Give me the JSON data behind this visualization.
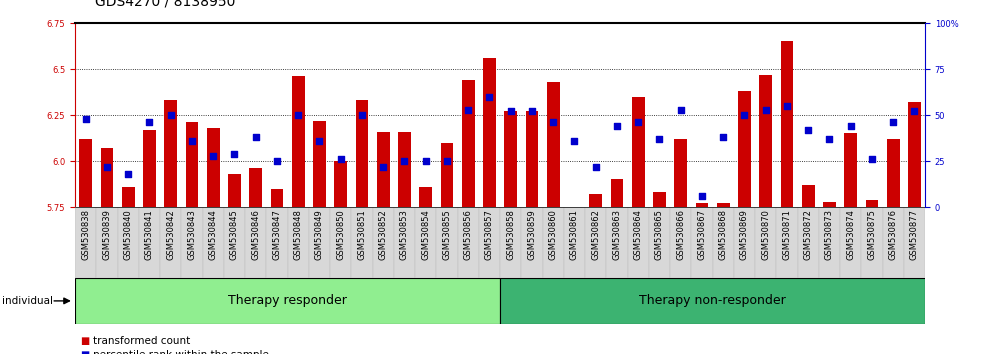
{
  "title": "GDS4270 / 8138950",
  "samples": [
    "GSM530838",
    "GSM530839",
    "GSM530840",
    "GSM530841",
    "GSM530842",
    "GSM530843",
    "GSM530844",
    "GSM530845",
    "GSM530846",
    "GSM530847",
    "GSM530848",
    "GSM530849",
    "GSM530850",
    "GSM530851",
    "GSM530852",
    "GSM530853",
    "GSM530854",
    "GSM530855",
    "GSM530856",
    "GSM530857",
    "GSM530858",
    "GSM530859",
    "GSM530860",
    "GSM530861",
    "GSM530862",
    "GSM530863",
    "GSM530864",
    "GSM530865",
    "GSM530866",
    "GSM530867",
    "GSM530868",
    "GSM530869",
    "GSM530870",
    "GSM530871",
    "GSM530872",
    "GSM530873",
    "GSM530874",
    "GSM530875",
    "GSM530876",
    "GSM530877"
  ],
  "bar_values": [
    6.12,
    6.07,
    5.86,
    6.17,
    6.33,
    6.21,
    6.18,
    5.93,
    5.96,
    5.85,
    6.46,
    6.22,
    6.0,
    6.33,
    6.16,
    6.16,
    5.86,
    6.1,
    6.44,
    6.56,
    6.27,
    6.27,
    6.43,
    5.75,
    5.82,
    5.9,
    6.35,
    5.83,
    6.12,
    5.77,
    5.77,
    6.38,
    6.47,
    6.65,
    5.87,
    5.78,
    6.15,
    5.79,
    6.12,
    6.32
  ],
  "percentile_values": [
    48,
    22,
    18,
    46,
    50,
    36,
    28,
    29,
    38,
    25,
    50,
    36,
    26,
    50,
    22,
    25,
    25,
    25,
    53,
    60,
    52,
    52,
    46,
    36,
    22,
    44,
    46,
    37,
    53,
    6,
    38,
    50,
    53,
    55,
    42,
    37,
    44,
    26,
    46,
    52
  ],
  "group_labels": [
    "Therapy responder",
    "Therapy non-responder"
  ],
  "group_split": 20,
  "n_samples": 40,
  "bar_color": "#CC0000",
  "dot_color": "#0000CC",
  "group_color_1": "#90EE90",
  "group_color_2": "#3CB371",
  "ylim_left": [
    5.75,
    6.75
  ],
  "ylim_right": [
    0,
    100
  ],
  "yticks_left": [
    5.75,
    6.0,
    6.25,
    6.5,
    6.75
  ],
  "yticks_right": [
    0,
    25,
    50,
    75,
    100
  ],
  "grid_values": [
    6.0,
    6.25,
    6.5
  ],
  "tick_label_fontsize": 6.0,
  "group_label_fontsize": 9,
  "title_fontsize": 10,
  "legend_fontsize": 7.5,
  "individual_label": "individual"
}
